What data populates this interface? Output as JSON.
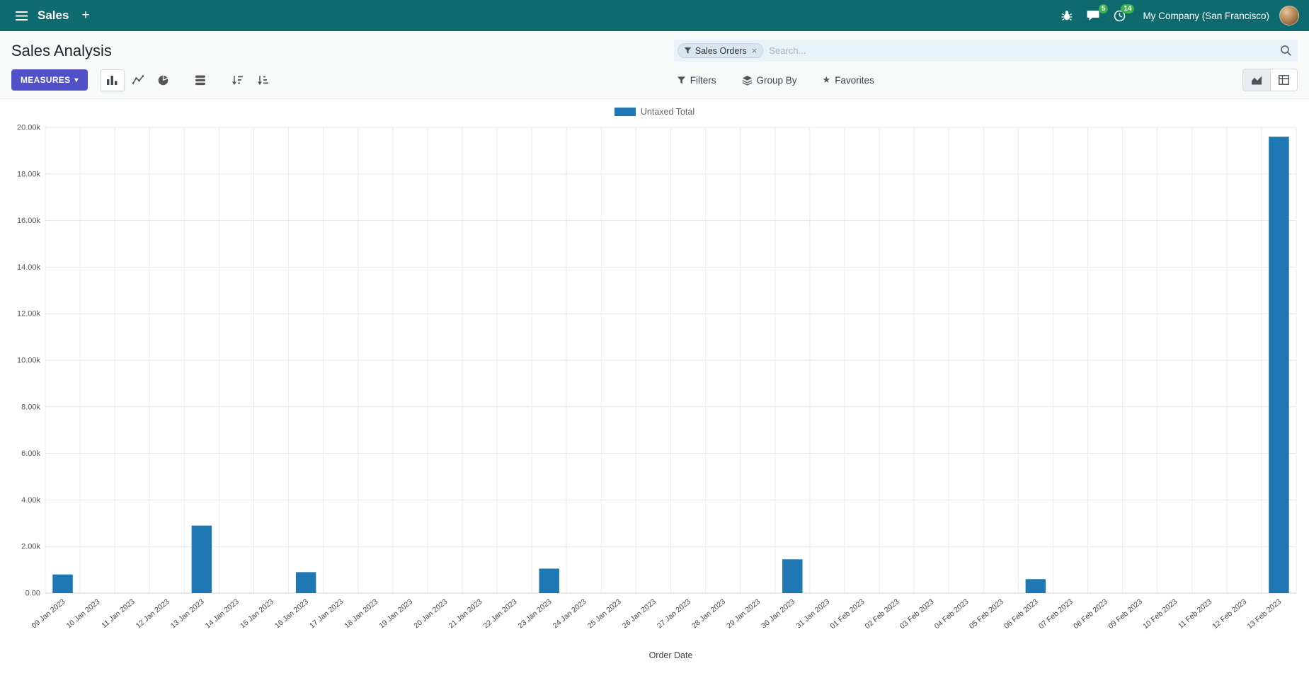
{
  "icons": {
    "caret_down": "▾",
    "close": "×",
    "star": "★",
    "plus": "+"
  },
  "colors": {
    "topbar_bg": "#0e6a6e",
    "primary_button": "#5050c8",
    "badge_green": "#38b44a",
    "bar_blue": "#1f77b4"
  },
  "top_bar": {
    "app_name": "Sales",
    "company": "My Company (San Francisco)",
    "messages_badge": "5",
    "activities_badge": "14"
  },
  "control_panel": {
    "title": "Sales Analysis",
    "measures_label": "MEASURES",
    "search": {
      "facet_label": "Sales Orders",
      "placeholder": "Search..."
    },
    "filters_label": "Filters",
    "group_by_label": "Group By",
    "favorites_label": "Favorites"
  },
  "chart_data": {
    "type": "bar",
    "title": "",
    "xlabel": "Order Date",
    "ylabel": "",
    "ylim": [
      0,
      20000
    ],
    "ytick_step": 2000,
    "yticks": [
      "0.00",
      "2.00k",
      "4.00k",
      "6.00k",
      "8.00k",
      "10.00k",
      "12.00k",
      "14.00k",
      "16.00k",
      "18.00k",
      "20.00k"
    ],
    "grid": true,
    "legend_position": "top",
    "categories": [
      "09 Jan 2023",
      "10 Jan 2023",
      "11 Jan 2023",
      "12 Jan 2023",
      "13 Jan 2023",
      "14 Jan 2023",
      "15 Jan 2023",
      "16 Jan 2023",
      "17 Jan 2023",
      "18 Jan 2023",
      "19 Jan 2023",
      "20 Jan 2023",
      "21 Jan 2023",
      "22 Jan 2023",
      "23 Jan 2023",
      "24 Jan 2023",
      "25 Jan 2023",
      "26 Jan 2023",
      "27 Jan 2023",
      "28 Jan 2023",
      "29 Jan 2023",
      "30 Jan 2023",
      "31 Jan 2023",
      "01 Feb 2023",
      "02 Feb 2023",
      "03 Feb 2023",
      "04 Feb 2023",
      "05 Feb 2023",
      "06 Feb 2023",
      "07 Feb 2023",
      "08 Feb 2023",
      "09 Feb 2023",
      "10 Feb 2023",
      "11 Feb 2023",
      "12 Feb 2023",
      "13 Feb 2023"
    ],
    "series": [
      {
        "name": "Untaxed Total",
        "color": "#1f77b4",
        "values": [
          800,
          0,
          0,
          0,
          2900,
          0,
          0,
          900,
          0,
          0,
          0,
          0,
          0,
          0,
          1050,
          0,
          0,
          0,
          0,
          0,
          0,
          1450,
          0,
          0,
          0,
          0,
          0,
          0,
          600,
          0,
          0,
          0,
          0,
          0,
          0,
          19600
        ]
      }
    ]
  }
}
